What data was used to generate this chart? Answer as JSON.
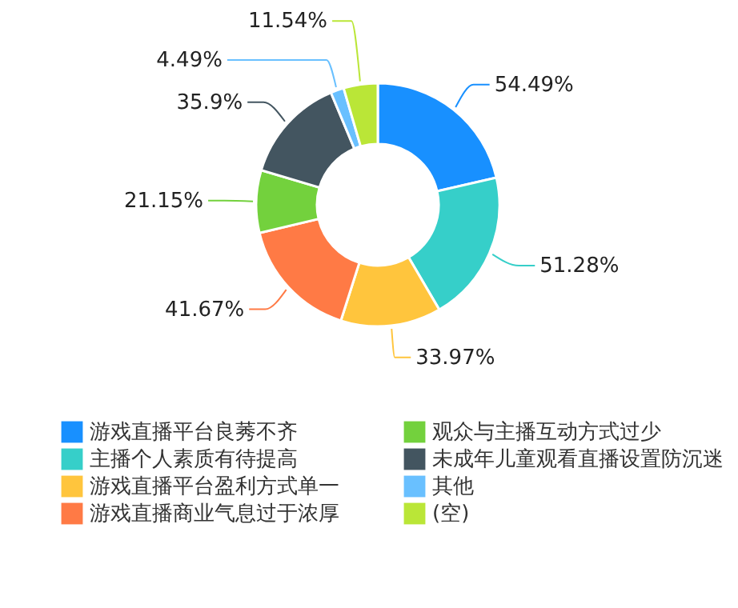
{
  "chart_data": {
    "type": "donut",
    "categories": [
      "游戏直播平台良莠不齐",
      "主播个人素质有待提高",
      "游戏直播平台盈利方式单一",
      "游戏直播商业气息过于浓厚",
      "观众与主播互动方式过少",
      "未成年儿童观看直播设置防沉迷",
      "其他",
      "(空)"
    ],
    "values": [
      54.49,
      51.28,
      33.97,
      41.67,
      21.15,
      35.9,
      4.49,
      11.54
    ],
    "value_labels": [
      "54.49%",
      "51.28%",
      "33.97%",
      "41.67%",
      "21.15%",
      "35.9%",
      "4.49%",
      "11.54%"
    ],
    "colors": [
      "#1890ff",
      "#36cfc9",
      "#ffc53d",
      "#ff7a45",
      "#73d13d",
      "#435560",
      "#69c0ff",
      "#bae637"
    ],
    "legend": "bottom"
  }
}
